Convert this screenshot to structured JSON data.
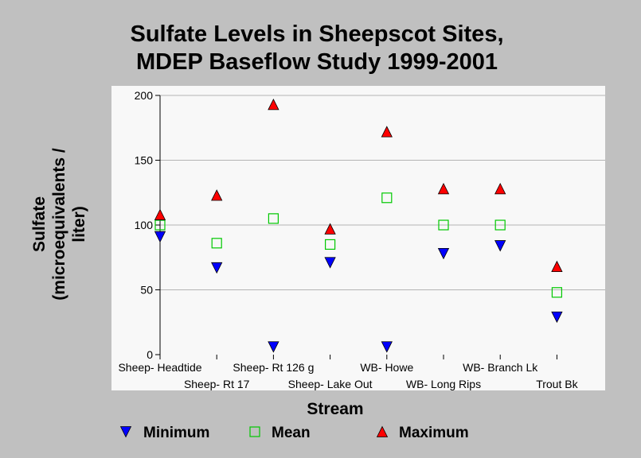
{
  "chart_data": {
    "type": "scatter",
    "title_lines": [
      "Sulfate Levels in Sheepscot Sites,",
      "MDEP Baseflow Study 1999-2001"
    ],
    "xlabel": "Stream",
    "ylabel_lines": [
      "Sulfate",
      "(microequivalents /",
      "liter)"
    ],
    "categories": [
      "Sheep- Headtide",
      "Sheep- Rt 17",
      "Sheep- Rt 126 g",
      "Sheep- Lake Out",
      "WB- Howe",
      "WB- Long Rips",
      "WB- Branch Lk",
      "Trout Bk"
    ],
    "yticks": [
      "0",
      "50",
      "100",
      "150",
      "200"
    ],
    "ylim": [
      0,
      200
    ],
    "grid": true,
    "legend_position": "bottom",
    "series": [
      {
        "name": "Minimum",
        "marker": "triangle-down",
        "color": "#0000ff",
        "values": [
          91,
          67,
          6,
          71,
          6,
          78,
          84,
          29
        ]
      },
      {
        "name": "Mean",
        "marker": "square-open",
        "color": "#00c800",
        "values": [
          100,
          86,
          105,
          85,
          121,
          100,
          100,
          48
        ]
      },
      {
        "name": "Maximum",
        "marker": "triangle-up",
        "color": "#ff0000",
        "values": [
          108,
          123,
          193,
          97,
          172,
          128,
          128,
          68
        ]
      }
    ]
  },
  "colors": {
    "background": "#c0c0c0",
    "plot_background": "#f8f8f8",
    "gridline": "#b4b4b4"
  }
}
